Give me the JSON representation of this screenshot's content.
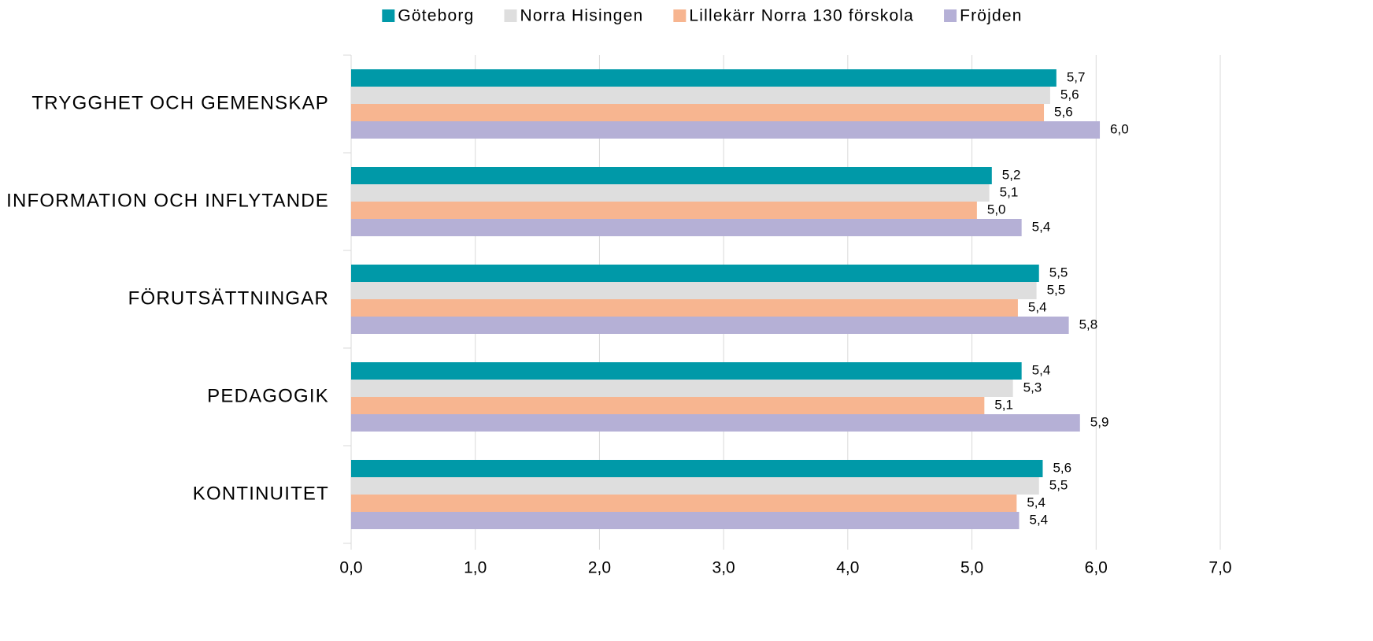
{
  "chart_data": {
    "type": "bar",
    "orientation": "horizontal",
    "categories": [
      "TRYGGHET OCH GEMENSKAP",
      "INFORMATION OCH INFLYTANDE",
      "FÖRUTSÄTTNINGAR",
      "PEDAGOGIK",
      "KONTINUITET"
    ],
    "series": [
      {
        "name": "Göteborg",
        "color": "#0099a8",
        "values": [
          5.68,
          5.16,
          5.54,
          5.4,
          5.57
        ],
        "value_labels": [
          "5,7",
          "5,2",
          "5,5",
          "5,4",
          "5,6"
        ]
      },
      {
        "name": "Norra Hisingen",
        "color": "#dedede",
        "values": [
          5.63,
          5.14,
          5.52,
          5.33,
          5.54
        ],
        "value_labels": [
          "5,6",
          "5,1",
          "5,5",
          "5,3",
          "5,5"
        ]
      },
      {
        "name": "Lillekärr Norra 130 förskola",
        "color": "#f7b590",
        "values": [
          5.58,
          5.04,
          5.37,
          5.1,
          5.36
        ],
        "value_labels": [
          "5,6",
          "5,0",
          "5,4",
          "5,1",
          "5,4"
        ]
      },
      {
        "name": "Fröjden",
        "color": "#b5b0d6",
        "values": [
          6.03,
          5.4,
          5.78,
          5.87,
          5.38
        ],
        "value_labels": [
          "6,0",
          "5,4",
          "5,8",
          "5,9",
          "5,4"
        ]
      }
    ],
    "xlim": [
      0,
      7
    ],
    "xticks": [
      {
        "value": 0,
        "label": "0,0"
      },
      {
        "value": 1,
        "label": "1,0"
      },
      {
        "value": 2,
        "label": "2,0"
      },
      {
        "value": 3,
        "label": "3,0"
      },
      {
        "value": 4,
        "label": "4,0"
      },
      {
        "value": 5,
        "label": "5,0"
      },
      {
        "value": 6,
        "label": "6,0"
      },
      {
        "value": 7,
        "label": "7,0"
      }
    ],
    "grid": true,
    "legend": "top"
  }
}
